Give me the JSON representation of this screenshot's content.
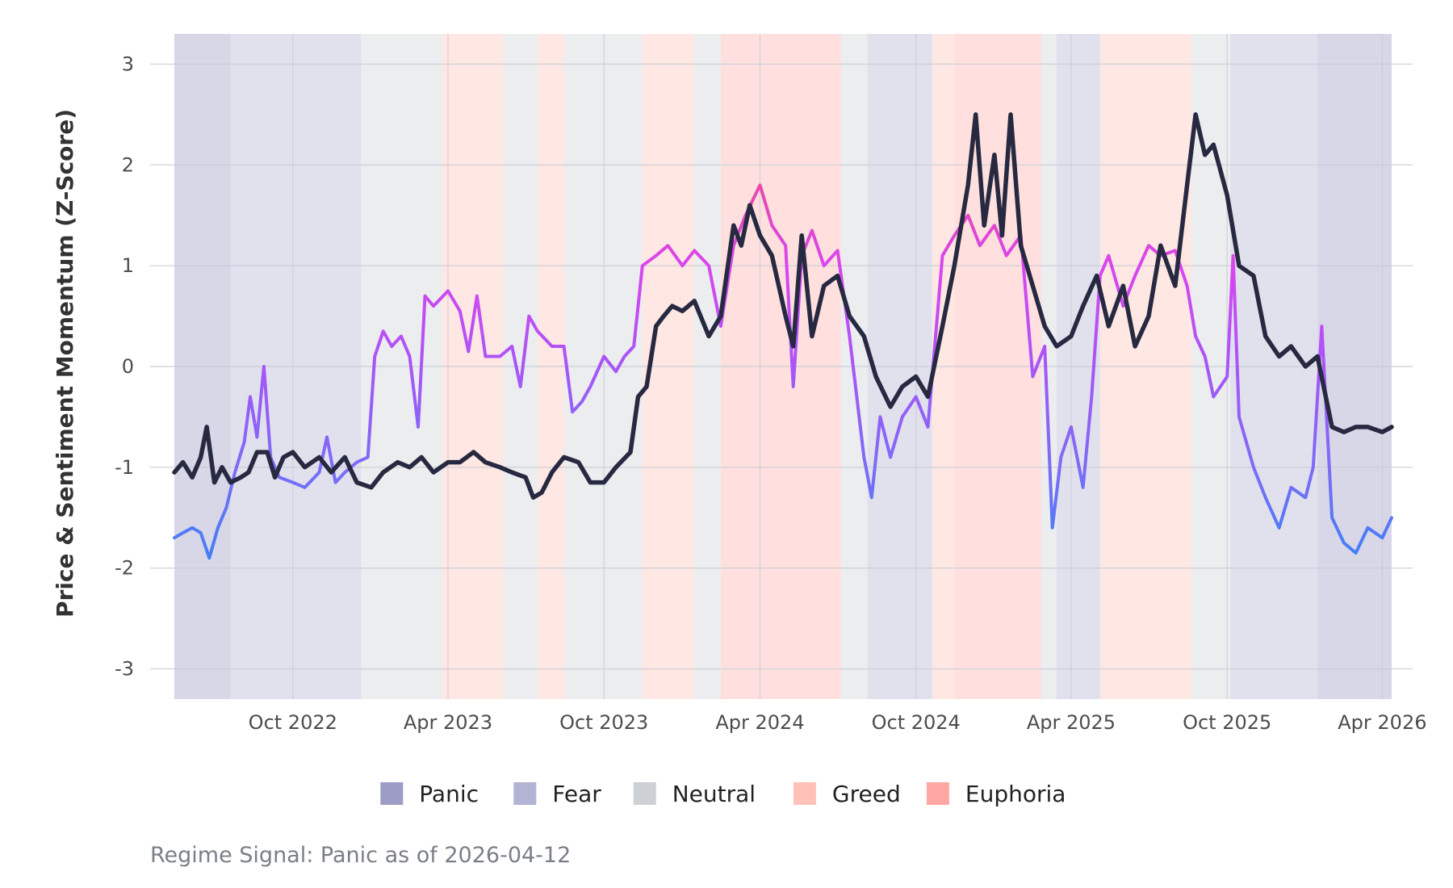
{
  "chart_data": {
    "type": "line",
    "title": "",
    "xlabel": "",
    "ylabel": "Price & Sentiment Momentum (Z-Score)",
    "x_range": [
      "2022-05-15",
      "2026-04-12"
    ],
    "ylim": [
      -3.3,
      3.3
    ],
    "y_ticks": [
      -3,
      -2,
      -1,
      0,
      1,
      2,
      3
    ],
    "y_tick_labels": [
      "-3",
      "-2",
      "-1",
      "0",
      "1",
      "2",
      "3"
    ],
    "x_ticks": [
      "2022-10-01",
      "2023-04-01",
      "2023-10-01",
      "2024-04-01",
      "2024-10-01",
      "2025-04-01",
      "2025-10-01",
      "2026-04-01"
    ],
    "x_tick_labels": [
      "Oct 2022",
      "Apr 2023",
      "Oct 2023",
      "Apr 2024",
      "Oct 2024",
      "Apr 2025",
      "Oct 2025",
      "Apr 2026"
    ],
    "grid": true,
    "legend_position": "bottom",
    "legend": [
      {
        "label": "Panic",
        "color": "#9c9cc6"
      },
      {
        "label": "Fear",
        "color": "#b3b3d4"
      },
      {
        "label": "Neutral",
        "color": "#cdd1d6"
      },
      {
        "label": "Greed",
        "color": "#ffc2b8"
      },
      {
        "label": "Euphoria",
        "color": "#ffa7a3"
      }
    ],
    "regimes": [
      {
        "start": "2022-05-15",
        "end": "2022-07-20",
        "regime": "Panic"
      },
      {
        "start": "2022-07-20",
        "end": "2022-08-15",
        "regime": "Fear"
      },
      {
        "start": "2022-08-15",
        "end": "2022-12-20",
        "regime": "Fear"
      },
      {
        "start": "2022-12-20",
        "end": "2023-01-05",
        "regime": "Neutral"
      },
      {
        "start": "2023-01-05",
        "end": "2023-03-25",
        "regime": "Neutral"
      },
      {
        "start": "2023-03-25",
        "end": "2023-06-05",
        "regime": "Greed"
      },
      {
        "start": "2023-06-05",
        "end": "2023-07-15",
        "regime": "Neutral"
      },
      {
        "start": "2023-07-15",
        "end": "2023-08-15",
        "regime": "Greed"
      },
      {
        "start": "2023-08-15",
        "end": "2023-11-15",
        "regime": "Neutral"
      },
      {
        "start": "2023-11-15",
        "end": "2024-01-15",
        "regime": "Greed"
      },
      {
        "start": "2024-01-15",
        "end": "2024-02-15",
        "regime": "Neutral"
      },
      {
        "start": "2024-02-15",
        "end": "2024-07-05",
        "regime": "Euphoria"
      },
      {
        "start": "2024-07-05",
        "end": "2024-08-05",
        "regime": "Neutral"
      },
      {
        "start": "2024-08-05",
        "end": "2024-10-20",
        "regime": "Fear"
      },
      {
        "start": "2024-10-20",
        "end": "2024-11-15",
        "regime": "Greed"
      },
      {
        "start": "2024-11-15",
        "end": "2025-02-25",
        "regime": "Euphoria"
      },
      {
        "start": "2025-02-25",
        "end": "2025-03-15",
        "regime": "Neutral"
      },
      {
        "start": "2025-03-15",
        "end": "2025-05-05",
        "regime": "Fear"
      },
      {
        "start": "2025-05-05",
        "end": "2025-08-20",
        "regime": "Greed"
      },
      {
        "start": "2025-08-20",
        "end": "2025-10-05",
        "regime": "Neutral"
      },
      {
        "start": "2025-10-05",
        "end": "2026-01-15",
        "regime": "Fear"
      },
      {
        "start": "2026-01-15",
        "end": "2026-04-12",
        "regime": "Panic"
      }
    ],
    "series": [
      {
        "name": "Price",
        "color": "#262940",
        "points": [
          [
            "2022-05-15",
            -1.05
          ],
          [
            "2022-05-25",
            -0.95
          ],
          [
            "2022-06-05",
            -1.1
          ],
          [
            "2022-06-15",
            -0.9
          ],
          [
            "2022-06-22",
            -0.6
          ],
          [
            "2022-07-01",
            -1.15
          ],
          [
            "2022-07-10",
            -1.0
          ],
          [
            "2022-07-20",
            -1.15
          ],
          [
            "2022-08-01",
            -1.1
          ],
          [
            "2022-08-10",
            -1.05
          ],
          [
            "2022-08-20",
            -0.85
          ],
          [
            "2022-09-01",
            -0.85
          ],
          [
            "2022-09-10",
            -1.1
          ],
          [
            "2022-09-20",
            -0.9
          ],
          [
            "2022-10-01",
            -0.85
          ],
          [
            "2022-10-15",
            -1.0
          ],
          [
            "2022-11-01",
            -0.9
          ],
          [
            "2022-11-15",
            -1.05
          ],
          [
            "2022-12-01",
            -0.9
          ],
          [
            "2022-12-15",
            -1.15
          ],
          [
            "2023-01-01",
            -1.2
          ],
          [
            "2023-01-15",
            -1.05
          ],
          [
            "2023-02-01",
            -0.95
          ],
          [
            "2023-02-15",
            -1.0
          ],
          [
            "2023-03-01",
            -0.9
          ],
          [
            "2023-03-15",
            -1.05
          ],
          [
            "2023-04-01",
            -0.95
          ],
          [
            "2023-04-15",
            -0.95
          ],
          [
            "2023-05-01",
            -0.85
          ],
          [
            "2023-05-15",
            -0.95
          ],
          [
            "2023-06-01",
            -1.0
          ],
          [
            "2023-06-15",
            -1.05
          ],
          [
            "2023-07-01",
            -1.1
          ],
          [
            "2023-07-10",
            -1.3
          ],
          [
            "2023-07-20",
            -1.25
          ],
          [
            "2023-08-01",
            -1.05
          ],
          [
            "2023-08-15",
            -0.9
          ],
          [
            "2023-09-01",
            -0.95
          ],
          [
            "2023-09-15",
            -1.15
          ],
          [
            "2023-10-01",
            -1.15
          ],
          [
            "2023-10-15",
            -1.0
          ],
          [
            "2023-11-01",
            -0.85
          ],
          [
            "2023-11-10",
            -0.3
          ],
          [
            "2023-11-20",
            -0.2
          ],
          [
            "2023-12-01",
            0.4
          ],
          [
            "2023-12-10",
            0.5
          ],
          [
            "2023-12-20",
            0.6
          ],
          [
            "2024-01-01",
            0.55
          ],
          [
            "2024-01-15",
            0.65
          ],
          [
            "2024-02-01",
            0.3
          ],
          [
            "2024-02-15",
            0.5
          ],
          [
            "2024-03-01",
            1.4
          ],
          [
            "2024-03-10",
            1.2
          ],
          [
            "2024-03-20",
            1.6
          ],
          [
            "2024-04-01",
            1.3
          ],
          [
            "2024-04-15",
            1.1
          ],
          [
            "2024-05-01",
            0.5
          ],
          [
            "2024-05-10",
            0.2
          ],
          [
            "2024-05-20",
            1.3
          ],
          [
            "2024-06-01",
            0.3
          ],
          [
            "2024-06-15",
            0.8
          ],
          [
            "2024-07-01",
            0.9
          ],
          [
            "2024-07-15",
            0.5
          ],
          [
            "2024-08-01",
            0.3
          ],
          [
            "2024-08-15",
            -0.1
          ],
          [
            "2024-09-01",
            -0.4
          ],
          [
            "2024-09-15",
            -0.2
          ],
          [
            "2024-10-01",
            -0.1
          ],
          [
            "2024-10-15",
            -0.3
          ],
          [
            "2024-11-01",
            0.4
          ],
          [
            "2024-11-15",
            1.0
          ],
          [
            "2024-12-01",
            1.8
          ],
          [
            "2024-12-10",
            2.5
          ],
          [
            "2024-12-20",
            1.4
          ],
          [
            "2025-01-01",
            2.1
          ],
          [
            "2025-01-10",
            1.3
          ],
          [
            "2025-01-20",
            2.5
          ],
          [
            "2025-02-01",
            1.2
          ],
          [
            "2025-02-15",
            0.8
          ],
          [
            "2025-03-01",
            0.4
          ],
          [
            "2025-03-15",
            0.2
          ],
          [
            "2025-04-01",
            0.3
          ],
          [
            "2025-04-15",
            0.6
          ],
          [
            "2025-05-01",
            0.9
          ],
          [
            "2025-05-15",
            0.4
          ],
          [
            "2025-06-01",
            0.8
          ],
          [
            "2025-06-15",
            0.2
          ],
          [
            "2025-07-01",
            0.5
          ],
          [
            "2025-07-15",
            1.2
          ],
          [
            "2025-08-01",
            0.8
          ],
          [
            "2025-08-15",
            1.8
          ],
          [
            "2025-08-25",
            2.5
          ],
          [
            "2025-09-05",
            2.1
          ],
          [
            "2025-09-15",
            2.2
          ],
          [
            "2025-10-01",
            1.7
          ],
          [
            "2025-10-15",
            1.0
          ],
          [
            "2025-11-01",
            0.9
          ],
          [
            "2025-11-15",
            0.3
          ],
          [
            "2025-12-01",
            0.1
          ],
          [
            "2025-12-15",
            0.2
          ],
          [
            "2026-01-01",
            0.0
          ],
          [
            "2026-01-15",
            0.1
          ],
          [
            "2026-02-01",
            -0.6
          ],
          [
            "2026-02-15",
            -0.65
          ],
          [
            "2026-03-01",
            -0.6
          ],
          [
            "2026-03-15",
            -0.6
          ],
          [
            "2026-04-01",
            -0.65
          ],
          [
            "2026-04-12",
            -0.6
          ]
        ]
      },
      {
        "name": "Sentiment",
        "color": "#8b5cf6",
        "points": [
          [
            "2022-05-15",
            -1.7
          ],
          [
            "2022-05-25",
            -1.65
          ],
          [
            "2022-06-05",
            -1.6
          ],
          [
            "2022-06-15",
            -1.65
          ],
          [
            "2022-06-25",
            -1.9
          ],
          [
            "2022-07-05",
            -1.6
          ],
          [
            "2022-07-15",
            -1.4
          ],
          [
            "2022-07-25",
            -1.05
          ],
          [
            "2022-08-05",
            -0.75
          ],
          [
            "2022-08-12",
            -0.3
          ],
          [
            "2022-08-20",
            -0.7
          ],
          [
            "2022-08-28",
            0.0
          ],
          [
            "2022-09-05",
            -0.9
          ],
          [
            "2022-09-15",
            -1.1
          ],
          [
            "2022-10-01",
            -1.15
          ],
          [
            "2022-10-15",
            -1.2
          ],
          [
            "2022-11-01",
            -1.05
          ],
          [
            "2022-11-10",
            -0.7
          ],
          [
            "2022-11-20",
            -1.15
          ],
          [
            "2022-12-01",
            -1.05
          ],
          [
            "2022-12-15",
            -0.95
          ],
          [
            "2022-12-28",
            -0.9
          ],
          [
            "2023-01-05",
            0.1
          ],
          [
            "2023-01-15",
            0.35
          ],
          [
            "2023-01-25",
            0.2
          ],
          [
            "2023-02-05",
            0.3
          ],
          [
            "2023-02-15",
            0.1
          ],
          [
            "2023-02-25",
            -0.6
          ],
          [
            "2023-03-05",
            0.7
          ],
          [
            "2023-03-15",
            0.6
          ],
          [
            "2023-04-01",
            0.75
          ],
          [
            "2023-04-15",
            0.55
          ],
          [
            "2023-04-25",
            0.15
          ],
          [
            "2023-05-05",
            0.7
          ],
          [
            "2023-05-15",
            0.1
          ],
          [
            "2023-06-01",
            0.1
          ],
          [
            "2023-06-15",
            0.2
          ],
          [
            "2023-06-25",
            -0.2
          ],
          [
            "2023-07-05",
            0.5
          ],
          [
            "2023-07-15",
            0.35
          ],
          [
            "2023-08-01",
            0.2
          ],
          [
            "2023-08-15",
            0.2
          ],
          [
            "2023-08-25",
            -0.45
          ],
          [
            "2023-09-05",
            -0.35
          ],
          [
            "2023-09-15",
            -0.2
          ],
          [
            "2023-10-01",
            0.1
          ],
          [
            "2023-10-15",
            -0.05
          ],
          [
            "2023-10-25",
            0.1
          ],
          [
            "2023-11-05",
            0.2
          ],
          [
            "2023-11-15",
            1.0
          ],
          [
            "2023-12-01",
            1.1
          ],
          [
            "2023-12-15",
            1.2
          ],
          [
            "2024-01-01",
            1.0
          ],
          [
            "2024-01-15",
            1.15
          ],
          [
            "2024-02-01",
            1.0
          ],
          [
            "2024-02-15",
            0.4
          ],
          [
            "2024-03-01",
            1.2
          ],
          [
            "2024-03-15",
            1.5
          ],
          [
            "2024-04-01",
            1.8
          ],
          [
            "2024-04-15",
            1.4
          ],
          [
            "2024-05-01",
            1.2
          ],
          [
            "2024-05-10",
            -0.2
          ],
          [
            "2024-05-20",
            1.1
          ],
          [
            "2024-06-01",
            1.35
          ],
          [
            "2024-06-15",
            1.0
          ],
          [
            "2024-07-01",
            1.15
          ],
          [
            "2024-07-15",
            0.3
          ],
          [
            "2024-08-01",
            -0.9
          ],
          [
            "2024-08-10",
            -1.3
          ],
          [
            "2024-08-20",
            -0.5
          ],
          [
            "2024-09-01",
            -0.9
          ],
          [
            "2024-09-15",
            -0.5
          ],
          [
            "2024-10-01",
            -0.3
          ],
          [
            "2024-10-15",
            -0.6
          ],
          [
            "2024-11-01",
            1.1
          ],
          [
            "2024-11-15",
            1.3
          ],
          [
            "2024-12-01",
            1.5
          ],
          [
            "2024-12-15",
            1.2
          ],
          [
            "2025-01-01",
            1.4
          ],
          [
            "2025-01-15",
            1.1
          ],
          [
            "2025-02-01",
            1.3
          ],
          [
            "2025-02-15",
            -0.1
          ],
          [
            "2025-03-01",
            0.2
          ],
          [
            "2025-03-10",
            -1.6
          ],
          [
            "2025-03-20",
            -0.9
          ],
          [
            "2025-04-01",
            -0.6
          ],
          [
            "2025-04-15",
            -1.2
          ],
          [
            "2025-04-25",
            -0.3
          ],
          [
            "2025-05-05",
            0.9
          ],
          [
            "2025-05-15",
            1.1
          ],
          [
            "2025-06-01",
            0.6
          ],
          [
            "2025-06-15",
            0.9
          ],
          [
            "2025-07-01",
            1.2
          ],
          [
            "2025-07-15",
            1.1
          ],
          [
            "2025-08-01",
            1.15
          ],
          [
            "2025-08-15",
            0.8
          ],
          [
            "2025-08-25",
            0.3
          ],
          [
            "2025-09-05",
            0.1
          ],
          [
            "2025-09-15",
            -0.3
          ],
          [
            "2025-10-01",
            -0.1
          ],
          [
            "2025-10-08",
            1.1
          ],
          [
            "2025-10-15",
            -0.5
          ],
          [
            "2025-11-01",
            -1.0
          ],
          [
            "2025-11-15",
            -1.3
          ],
          [
            "2025-12-01",
            -1.6
          ],
          [
            "2025-12-15",
            -1.2
          ],
          [
            "2026-01-01",
            -1.3
          ],
          [
            "2026-01-10",
            -1.0
          ],
          [
            "2026-01-20",
            0.4
          ],
          [
            "2026-02-01",
            -1.5
          ],
          [
            "2026-02-15",
            -1.75
          ],
          [
            "2026-03-01",
            -1.85
          ],
          [
            "2026-03-15",
            -1.6
          ],
          [
            "2026-04-01",
            -1.7
          ],
          [
            "2026-04-12",
            -1.5
          ]
        ]
      }
    ],
    "sentiment_gradient": [
      {
        "value": -2.0,
        "color": "#3b82f6"
      },
      {
        "value": -1.0,
        "color": "#7c6cf6"
      },
      {
        "value": 0.0,
        "color": "#a855f7"
      },
      {
        "value": 1.0,
        "color": "#d946ef"
      },
      {
        "value": 2.0,
        "color": "#ec4899"
      }
    ],
    "caption": "Regime Signal: Panic as of 2026-04-12"
  }
}
